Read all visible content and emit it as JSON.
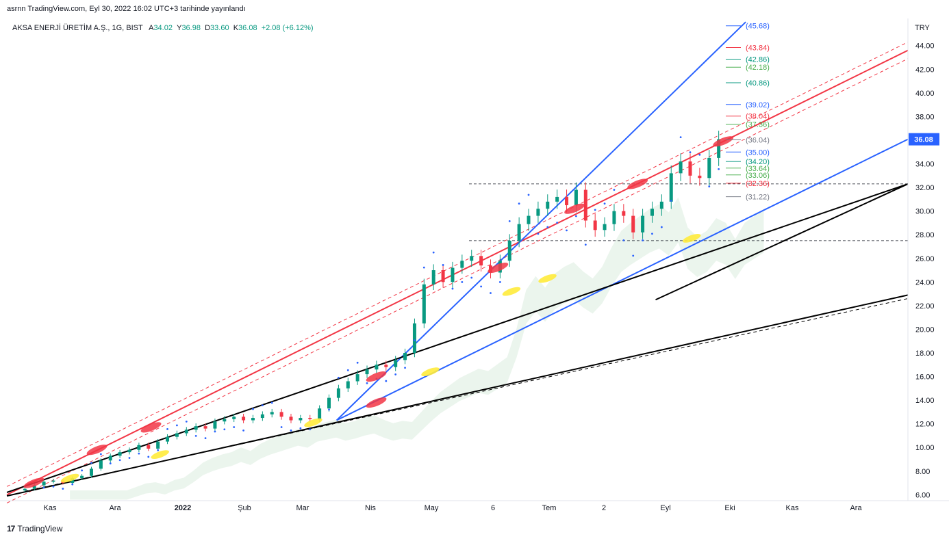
{
  "header": {
    "caption": "asrnn TradingView.com, Eyl 30, 2022 16:02 UTC+3 tarihinde yayınlandı",
    "symbol": "AKSA ENERJİ ÜRETİM A.Ş., 1G, BIST",
    "open_label": "A",
    "open": "34.02",
    "high_label": "Y",
    "high": "36.98",
    "low_label": "D",
    "low": "33.60",
    "close_label": "K",
    "close": "36.08",
    "change": "+2.08 (+6.12%)"
  },
  "footer": {
    "brand": "TradingView"
  },
  "colors": {
    "channel_red": "#f23645",
    "trend_blue": "#2962ff",
    "support_black": "#000000",
    "price_label_bg": "#2962ff",
    "cloud_green": "#e3f1e6",
    "candle_up": "#089981",
    "candle_down": "#f23645"
  },
  "chart_data": {
    "type": "candlestick",
    "currency": "TRY",
    "y_ticks": [
      6.0,
      8.0,
      10.0,
      12.0,
      14.0,
      16.0,
      18.0,
      20.0,
      22.0,
      24.0,
      26.0,
      28.0,
      30.0,
      32.0,
      34.0,
      36.0,
      38.0,
      40.0,
      42.0,
      44.0
    ],
    "y_tick_labels": [
      "6.00",
      "8.00",
      "10.00",
      "12.00",
      "14.00",
      "16.00",
      "18.00",
      "20.00",
      "22.00",
      "24.00",
      "26.00",
      "28.00",
      "30.00",
      "32.00",
      "34.00",
      "36.00",
      "38.00",
      "40.00",
      "42.00",
      "44.00"
    ],
    "ylim": [
      5.5,
      46.3
    ],
    "x_labels": [
      "Kas",
      "Ara",
      "2022",
      "Şub",
      "Mar",
      "Nis",
      "May",
      "6",
      "Tem",
      "2",
      "Eyl",
      "Eki",
      "Kas",
      "Ara"
    ],
    "last_price": "36.08",
    "price_closes": [
      6.5,
      6.8,
      7.1,
      7.2,
      7.0,
      7.4,
      7.6,
      8.2,
      8.9,
      9.3,
      9.6,
      9.8,
      10.2,
      9.9,
      10.5,
      10.9,
      11.2,
      11.5,
      11.8,
      11.6,
      12.2,
      12.4,
      12.6,
      12.3,
      12.5,
      12.8,
      13.0,
      12.6,
      12.3,
      12.5,
      12.4,
      13.3,
      14.2,
      15.0,
      15.6,
      16.2,
      16.6,
      17.0,
      16.8,
      17.4,
      18.0,
      20.5,
      23.8,
      25.0,
      24.0,
      25.2,
      25.8,
      26.2,
      25.4,
      24.8,
      25.8,
      27.5,
      28.9,
      29.6,
      30.2,
      30.8,
      31.2,
      30.5,
      31.8,
      29.2,
      28.4,
      28.9,
      30.0,
      29.6,
      28.2,
      29.6,
      30.2,
      30.8,
      33.2,
      34.2,
      33.0,
      32.8,
      34.5,
      36.08
    ],
    "fib_levels": [
      {
        "label": "(45.68)",
        "value": 45.68,
        "color": "#2962ff"
      },
      {
        "label": "(43.84)",
        "value": 43.84,
        "color": "#f23645"
      },
      {
        "label": "(42.86)",
        "value": 42.86,
        "color": "#089981"
      },
      {
        "label": "(42.18)",
        "value": 42.18,
        "color": "#4caf50"
      },
      {
        "label": "(40.86)",
        "value": 40.86,
        "color": "#089981"
      },
      {
        "label": "(39.02)",
        "value": 39.02,
        "color": "#2962ff"
      },
      {
        "label": "(38.04)",
        "value": 38.04,
        "color": "#f23645"
      },
      {
        "label": "(37.36)",
        "value": 37.36,
        "color": "#4caf50"
      },
      {
        "label": "(36.04)",
        "value": 36.04,
        "color": "#787b86"
      },
      {
        "label": "(35.00)",
        "value": 35.0,
        "color": "#2962ff"
      },
      {
        "label": "(34.20)",
        "value": 34.2,
        "color": "#089981"
      },
      {
        "label": "(33.64)",
        "value": 33.64,
        "color": "#4caf50"
      },
      {
        "label": "(33.06)",
        "value": 33.06,
        "color": "#4caf50"
      },
      {
        "label": "(32.36)",
        "value": 32.36,
        "color": "#f23645"
      },
      {
        "label": "(31.22)",
        "value": 31.22,
        "color": "#787b86"
      }
    ],
    "horizontal_levels": [
      32.3,
      27.5
    ],
    "trendlines": {
      "red_channel": {
        "from": [
          0,
          6.0
        ],
        "to": [
          1,
          43.6
        ]
      },
      "blue_steep": {
        "from": [
          0.366,
          12.3
        ],
        "to": [
          0.82,
          46.0
        ]
      },
      "blue_mid": {
        "from": [
          0.366,
          12.3
        ],
        "to": [
          1,
          36.08
        ]
      },
      "black_upper": {
        "from": [
          0,
          6.2
        ],
        "to": [
          1,
          32.3
        ]
      },
      "black_lower": {
        "from": [
          0,
          5.9
        ],
        "to": [
          1,
          22.9
        ]
      }
    }
  }
}
